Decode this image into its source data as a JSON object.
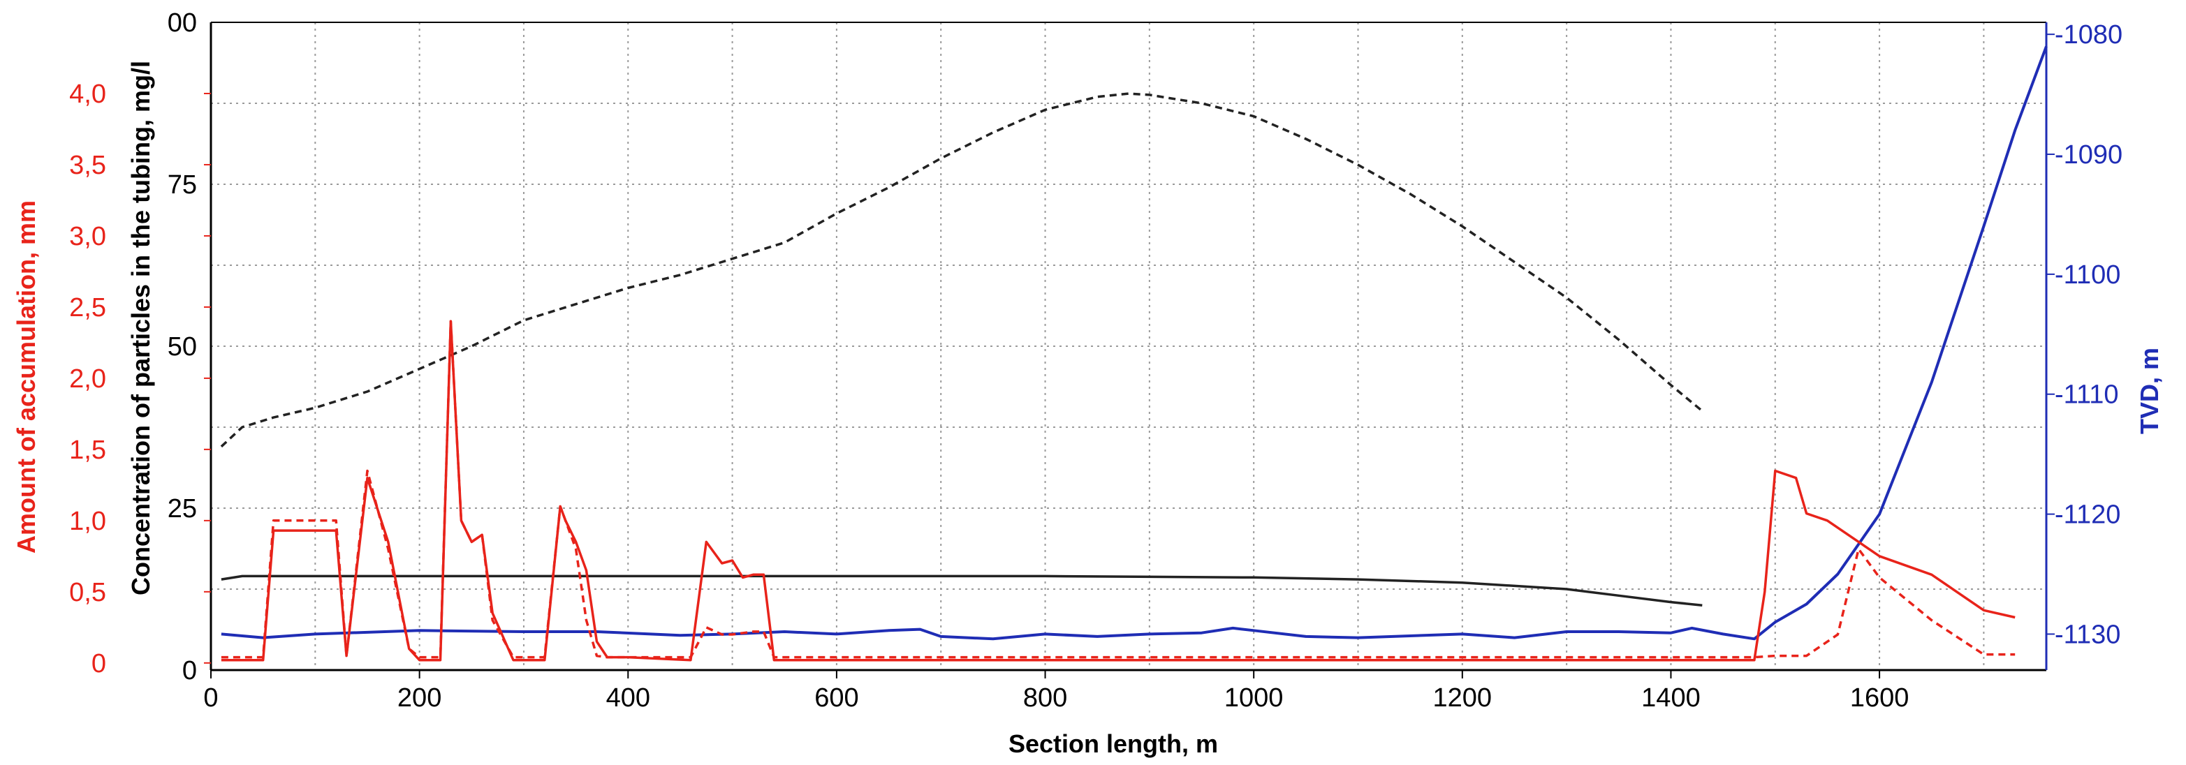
{
  "chart_data": {
    "type": "line",
    "title": "",
    "xlabel": "Section length, m",
    "xlim": [
      0,
      1760
    ],
    "x_ticks": [
      "0",
      "200",
      "400",
      "600",
      "800",
      "1000",
      "1200",
      "1400",
      "1600"
    ],
    "grid": true,
    "axes": {
      "accumulation": {
        "label": "Amount of accumulation, mm",
        "color": "#e8231a",
        "range": [
          -0.05,
          4.5
        ],
        "ticks": [
          "0",
          "0,5",
          "1,0",
          "1,5",
          "2,0",
          "2,5",
          "3,0",
          "3,5",
          "4,0"
        ]
      },
      "concentration": {
        "label": "Concentration of particles in the tubing, mg/l",
        "color": "#000000",
        "range": [
          0,
          100
        ],
        "ticks": [
          "0",
          "25",
          "50",
          "75",
          "00"
        ]
      },
      "tvd": {
        "label": "TVD, m",
        "color": "#1f2db5",
        "range": [
          -1133,
          -1079
        ],
        "ticks": [
          "-1130",
          "-1120",
          "-1110",
          "-1100",
          "-1090",
          "-1080"
        ]
      }
    },
    "series": [
      {
        "axis": "concentration",
        "style": "dashed",
        "color": "#222222",
        "x": [
          10,
          30,
          60,
          100,
          150,
          200,
          250,
          300,
          350,
          400,
          450,
          500,
          550,
          600,
          650,
          700,
          750,
          800,
          850,
          880,
          900,
          950,
          1000,
          1050,
          1100,
          1150,
          1200,
          1250,
          1300,
          1350,
          1400,
          1430
        ],
        "y": [
          34.5,
          37.5,
          39,
          40.5,
          43,
          46.5,
          50,
          54,
          56.5,
          59,
          61,
          63.5,
          66,
          70.5,
          74.5,
          79,
          83,
          86.5,
          88.5,
          89,
          88.8,
          87.5,
          85.5,
          82,
          78,
          73.5,
          68.5,
          63,
          57.5,
          51,
          44,
          40
        ]
      },
      {
        "axis": "concentration",
        "style": "solid",
        "color": "#222222",
        "x": [
          10,
          30,
          100,
          200,
          400,
          600,
          800,
          1000,
          1100,
          1200,
          1300,
          1350,
          1400,
          1430
        ],
        "y": [
          14,
          14.5,
          14.5,
          14.5,
          14.5,
          14.5,
          14.5,
          14.3,
          14,
          13.5,
          12.5,
          11.5,
          10.5,
          10
        ]
      },
      {
        "axis": "tvd",
        "style": "solid",
        "color": "#1f2db5",
        "x": [
          10,
          50,
          100,
          200,
          300,
          370,
          450,
          500,
          550,
          600,
          650,
          680,
          700,
          750,
          800,
          850,
          900,
          950,
          980,
          1000,
          1050,
          1100,
          1200,
          1250,
          1300,
          1350,
          1400,
          1420,
          1450,
          1480,
          1500,
          1530,
          1560,
          1600,
          1650,
          1700,
          1730,
          1760
        ],
        "y": [
          -1130,
          -1130.3,
          -1130,
          -1129.7,
          -1129.8,
          -1129.8,
          -1130.1,
          -1130,
          -1129.8,
          -1130,
          -1129.7,
          -1129.6,
          -1130.2,
          -1130.4,
          -1130,
          -1130.2,
          -1130,
          -1129.9,
          -1129.5,
          -1129.7,
          -1130.2,
          -1130.3,
          -1130,
          -1130.3,
          -1129.8,
          -1129.8,
          -1129.9,
          -1129.5,
          -1130,
          -1130.4,
          -1129,
          -1127.5,
          -1125,
          -1120,
          -1109,
          -1096,
          -1088,
          -1081
        ]
      },
      {
        "axis": "accumulation",
        "style": "solid",
        "color": "#e8231a",
        "x": [
          10,
          50,
          60,
          100,
          120,
          130,
          150,
          170,
          190,
          200,
          220,
          230,
          240,
          250,
          260,
          270,
          290,
          320,
          335,
          340,
          350,
          360,
          370,
          380,
          400,
          460,
          475,
          490,
          500,
          510,
          520,
          530,
          540,
          600,
          1000,
          1400,
          1480,
          1490,
          1500,
          1520,
          1530,
          1550,
          1600,
          1650,
          1700,
          1730
        ],
        "y": [
          0.02,
          0.02,
          0.93,
          0.93,
          0.93,
          0.05,
          1.3,
          0.85,
          0.1,
          0.02,
          0.02,
          2.4,
          1.0,
          0.85,
          0.9,
          0.35,
          0.02,
          0.02,
          1.1,
          1.0,
          0.85,
          0.65,
          0.15,
          0.04,
          0.04,
          0.02,
          0.85,
          0.7,
          0.72,
          0.6,
          0.62,
          0.62,
          0.02,
          0.02,
          0.02,
          0.02,
          0.02,
          0.5,
          1.35,
          1.3,
          1.05,
          1.0,
          0.75,
          0.62,
          0.37,
          0.32
        ]
      },
      {
        "axis": "accumulation",
        "style": "dashed",
        "color": "#e8231a",
        "x": [
          10,
          50,
          60,
          100,
          120,
          130,
          150,
          170,
          190,
          200,
          220,
          230,
          240,
          250,
          260,
          270,
          290,
          320,
          335,
          340,
          350,
          360,
          370,
          380,
          400,
          460,
          475,
          490,
          500,
          520,
          530,
          540,
          600,
          1000,
          1400,
          1480,
          1500,
          1530,
          1560,
          1580,
          1600,
          1650,
          1700,
          1730
        ],
        "y": [
          0.04,
          0.04,
          1.0,
          1.0,
          1.0,
          0.05,
          1.35,
          0.8,
          0.1,
          0.04,
          0.04,
          2.4,
          1.0,
          0.85,
          0.9,
          0.3,
          0.04,
          0.04,
          1.1,
          1.0,
          0.8,
          0.3,
          0.05,
          0.04,
          0.04,
          0.04,
          0.25,
          0.2,
          0.2,
          0.22,
          0.22,
          0.04,
          0.04,
          0.04,
          0.04,
          0.04,
          0.05,
          0.05,
          0.2,
          0.8,
          0.6,
          0.3,
          0.06,
          0.06
        ]
      }
    ]
  }
}
